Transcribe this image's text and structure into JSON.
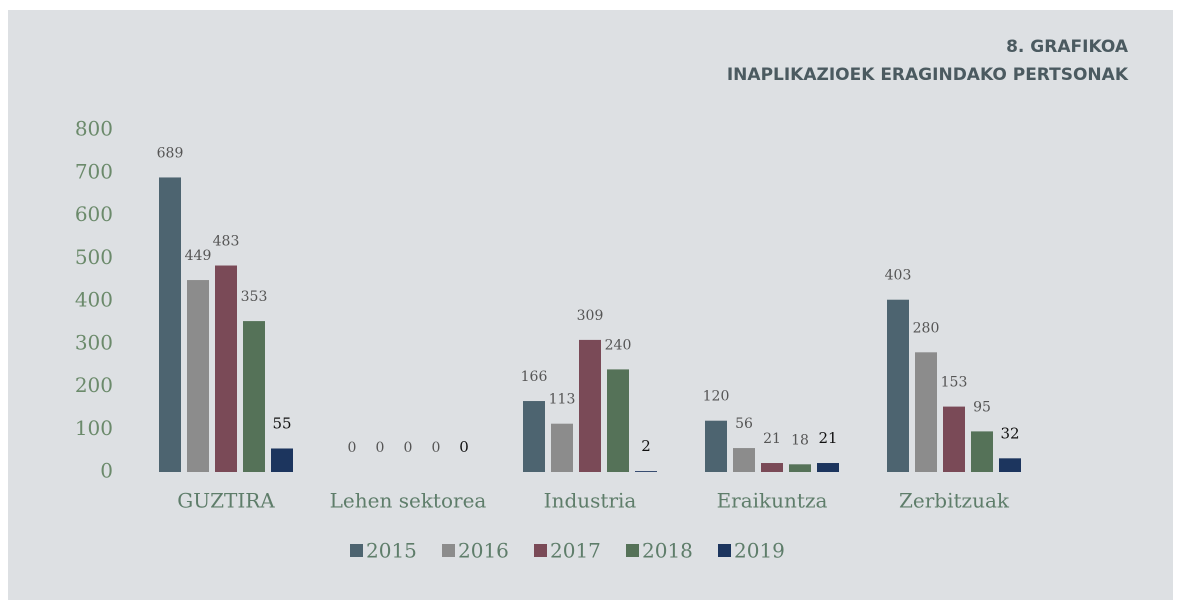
{
  "chart_data": {
    "type": "bar",
    "title": "8. GRAFIKOA",
    "subtitle": "INAPLIKAZIOEK ERAGINDAKO PERTSONAK",
    "categories": [
      "GUZTIRA",
      "Lehen sektorea",
      "Industria",
      "Eraikuntza",
      "Zerbitzuak"
    ],
    "series": [
      {
        "name": "2015",
        "color": "#4d6470",
        "values": [
          689,
          0,
          166,
          120,
          403
        ]
      },
      {
        "name": "2016",
        "color": "#8c8c8c",
        "values": [
          449,
          0,
          113,
          56,
          280
        ]
      },
      {
        "name": "2017",
        "color": "#7a4a57",
        "values": [
          483,
          0,
          309,
          21,
          153
        ]
      },
      {
        "name": "2018",
        "color": "#557258",
        "values": [
          353,
          0,
          240,
          18,
          95
        ]
      },
      {
        "name": "2019",
        "color": "#1c355e",
        "values": [
          55,
          0,
          2,
          21,
          32
        ]
      }
    ],
    "ylim": [
      0,
      800
    ],
    "yticks": [
      0,
      100,
      200,
      300,
      400,
      500,
      600,
      700,
      800
    ],
    "grid": false,
    "legend": "bottom"
  }
}
